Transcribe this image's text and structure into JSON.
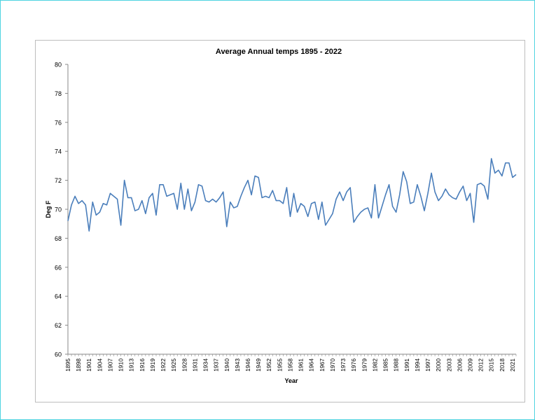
{
  "chart_data": {
    "type": "line",
    "title": "Average Annual temps 1895 - 2022",
    "xlabel": "Year",
    "ylabel": "Deg F",
    "ylim": [
      60,
      80
    ],
    "y_ticks": [
      60,
      62,
      64,
      66,
      68,
      70,
      72,
      74,
      76,
      78,
      80
    ],
    "x_tick_labels": [
      "1895",
      "1898",
      "1901",
      "1904",
      "1907",
      "1910",
      "1913",
      "1916",
      "1919",
      "1922",
      "1925",
      "1928",
      "1931",
      "1934",
      "1937",
      "1940",
      "1943",
      "1946",
      "1949",
      "1952",
      "1955",
      "1958",
      "1961",
      "1964",
      "1967",
      "1970",
      "1973",
      "1976",
      "1979",
      "1982",
      "1985",
      "1988",
      "1991",
      "1994",
      "1997",
      "2000",
      "2003",
      "2006",
      "2009",
      "2012",
      "2015",
      "2018",
      "2021"
    ],
    "grid": false,
    "legend": "none",
    "line_color": "#4a7ebb",
    "x_start": 1895,
    "x_end": 2022,
    "series": [
      {
        "values": [
          69.2,
          70.3,
          70.9,
          70.4,
          70.6,
          70.3,
          68.5,
          70.5,
          69.6,
          69.8,
          70.4,
          70.3,
          71.1,
          70.9,
          70.7,
          68.9,
          72.0,
          70.8,
          70.8,
          69.9,
          70.0,
          70.6,
          69.7,
          70.8,
          71.1,
          69.6,
          71.7,
          71.7,
          70.9,
          71.0,
          71.1,
          70.0,
          71.8,
          70.0,
          71.4,
          69.9,
          70.5,
          71.7,
          71.6,
          70.6,
          70.5,
          70.7,
          70.5,
          70.8,
          71.2,
          68.8,
          70.5,
          70.1,
          70.2,
          70.9,
          71.5,
          72.0,
          71.0,
          72.3,
          72.2,
          70.8,
          70.9,
          70.8,
          71.3,
          70.6,
          70.6,
          70.4,
          71.5,
          69.5,
          71.1,
          69.8,
          70.4,
          70.2,
          69.5,
          70.4,
          70.5,
          69.3,
          70.5,
          68.9,
          69.3,
          69.7,
          70.7,
          71.2,
          70.6,
          71.2,
          71.5,
          69.1,
          69.5,
          69.8,
          70.0,
          70.1,
          69.4,
          71.7,
          69.4,
          70.2,
          71.0,
          71.7,
          70.2,
          69.8,
          71.0,
          72.6,
          71.9,
          70.4,
          70.5,
          71.7,
          70.9,
          69.9,
          71.1,
          72.5,
          71.2,
          70.6,
          70.9,
          71.4,
          71.0,
          70.8,
          70.7,
          71.2,
          71.6,
          70.6,
          71.1,
          69.1,
          71.7,
          71.8,
          71.6,
          70.7,
          73.5,
          72.5,
          72.7,
          72.3,
          73.2,
          73.2,
          72.2,
          72.4
        ]
      }
    ]
  }
}
